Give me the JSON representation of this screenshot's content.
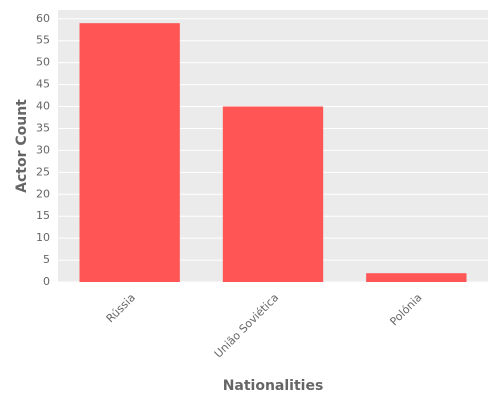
{
  "chart_data": {
    "type": "bar",
    "x_label": "Nationalities",
    "y_label": "Actor Count",
    "categories": [
      "Rússia",
      "União Soviética",
      "Polónia"
    ],
    "values": [
      59,
      40,
      2
    ],
    "color": "#ff5555",
    "ylim": [
      0,
      62
    ],
    "yticks": [
      0,
      5,
      10,
      15,
      20,
      25,
      30,
      35,
      40,
      45,
      50,
      55,
      60
    ],
    "grid": true
  }
}
